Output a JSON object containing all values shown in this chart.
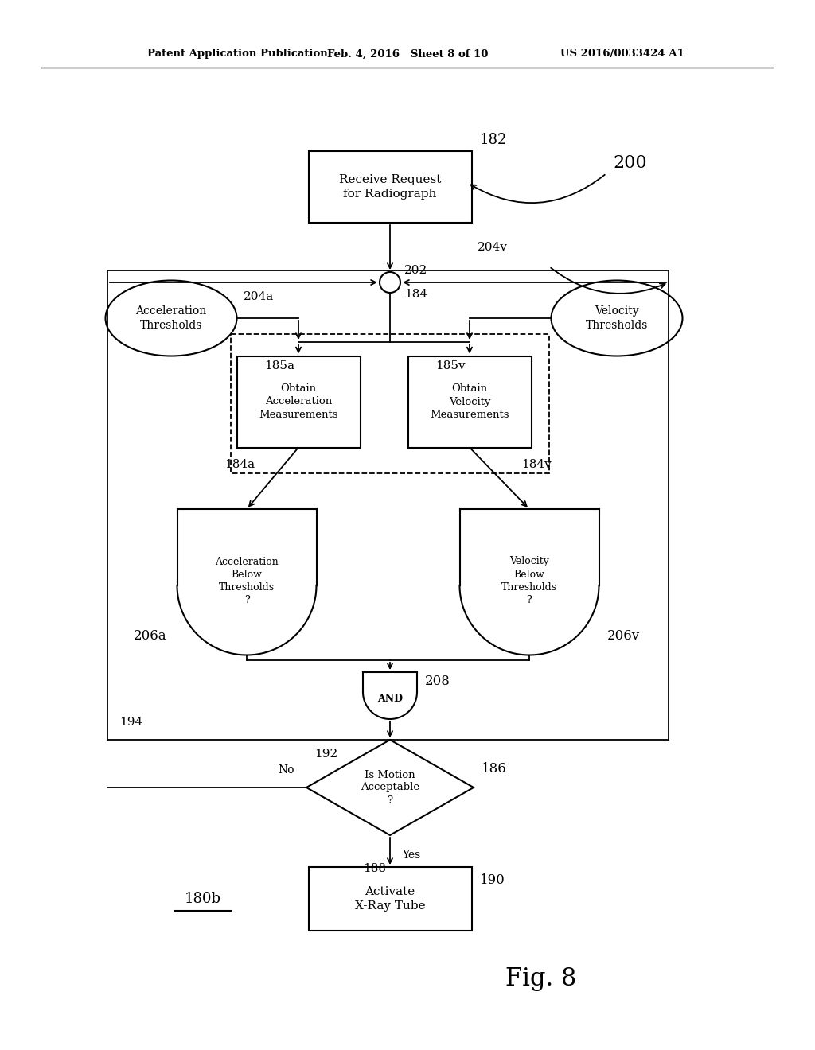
{
  "bg_color": "#ffffff",
  "header_left": "Patent Application Publication",
  "header_mid": "Feb. 4, 2016   Sheet 8 of 10",
  "header_right": "US 2016/0033424 A1",
  "fig_label": "Fig. 8",
  "process_label": "180b",
  "ref_182": "182",
  "ref_200": "200",
  "ref_202": "202",
  "ref_184": "184",
  "ref_204a": "204a",
  "ref_204v": "204v",
  "ref_185a": "185a",
  "ref_185v": "185v",
  "ref_184a": "184a",
  "ref_184v": "184v",
  "ref_206a": "206a",
  "ref_206v": "206v",
  "ref_208": "208",
  "ref_192": "192",
  "ref_186": "186",
  "ref_188": "188",
  "ref_190": "190",
  "ref_194": "194",
  "label_no": "No",
  "label_yes": "Yes",
  "label_receive": "Receive Request\nfor Radiograph",
  "label_accel_thresh": "Acceleration\nThresholds",
  "label_vel_thresh": "Velocity\nThresholds",
  "label_obtain_accel": "Obtain\nAcceleration\nMeasurements",
  "label_obtain_vel": "Obtain\nVelocity\nMeasurements",
  "label_accel_below": "Acceleration\nBelow\nThresholds\n?",
  "label_vel_below": "Velocity\nBelow\nThresholds\n?",
  "label_and": "AND",
  "label_motion": "Is Motion\nAcceptable\n?",
  "label_activate": "Activate\nX-Ray Tube"
}
